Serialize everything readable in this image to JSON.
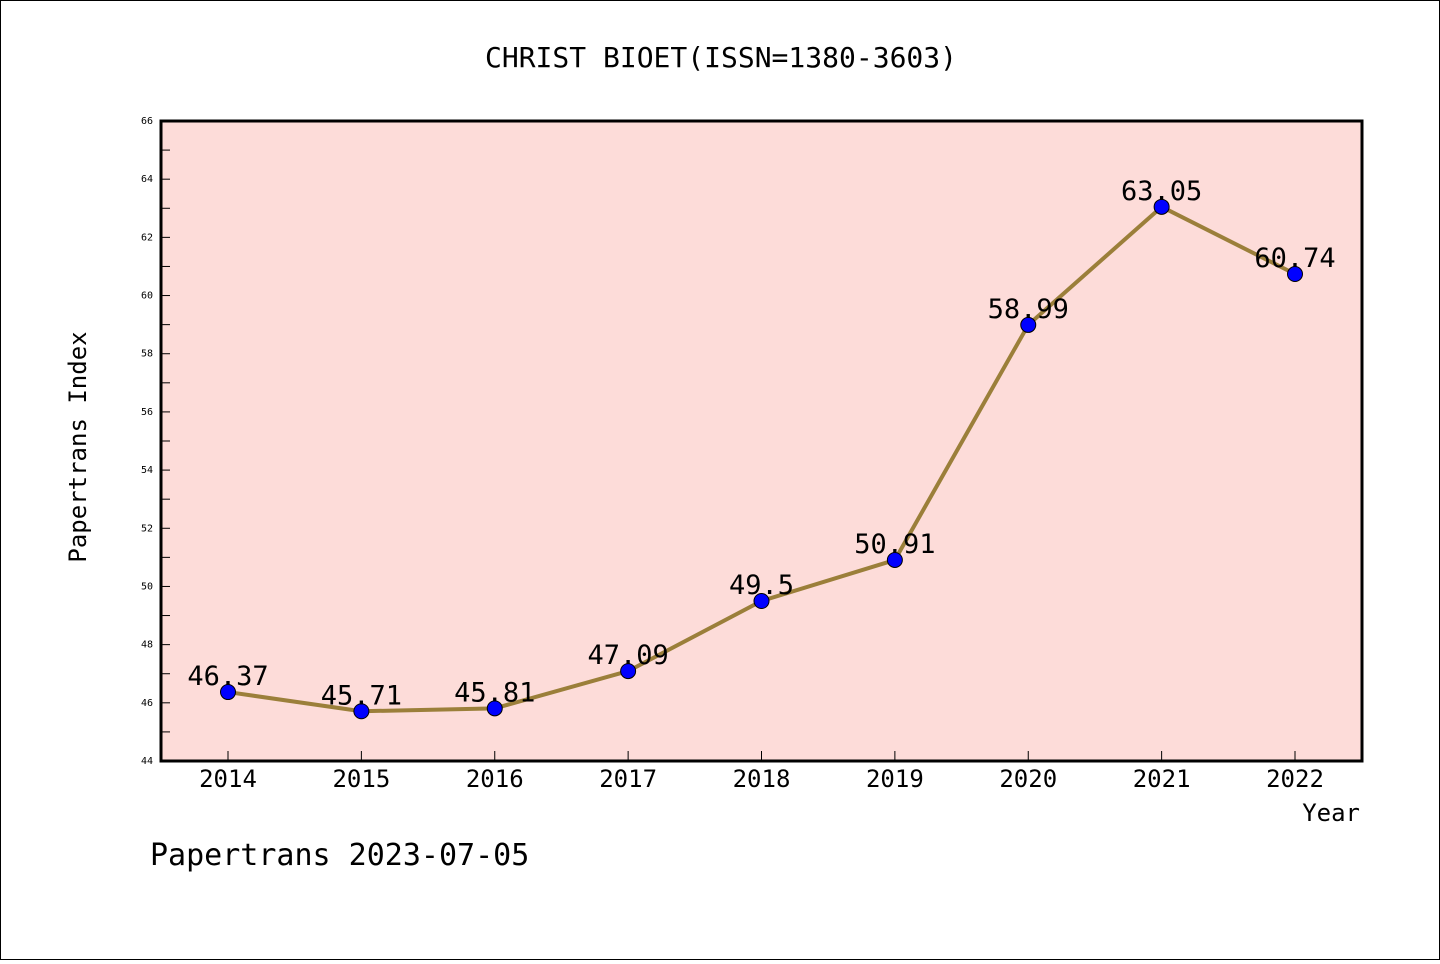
{
  "chart_data": {
    "type": "line",
    "title": "CHRIST BIOET(ISSN=1380-3603)",
    "xlabel": "Year",
    "ylabel": "Papertrans Index",
    "x": [
      2014,
      2015,
      2016,
      2017,
      2018,
      2019,
      2020,
      2021,
      2022
    ],
    "x_tick_labels": [
      "2014",
      "2015",
      "2016",
      "2017",
      "2018",
      "2019",
      "2020",
      "2021",
      "2022"
    ],
    "series": [
      {
        "values": [
          46.37,
          45.71,
          45.81,
          47.09,
          49.5,
          50.91,
          58.99,
          63.05,
          60.74
        ],
        "data_labels": [
          "46.37",
          "45.71",
          "45.81",
          "47.09",
          "49.5",
          "50.91",
          "58.99",
          "63.05",
          "60.74"
        ],
        "line_color": "#9b7f3a",
        "marker_color": "#0000ff"
      }
    ],
    "ylim": [
      44,
      66
    ],
    "y_ticks": [
      44,
      46,
      48,
      50,
      52,
      54,
      56,
      58,
      60,
      62,
      64,
      66
    ],
    "y_tick_labels": [
      "44",
      "46",
      "48",
      "50",
      "52",
      "54",
      "56",
      "58",
      "60",
      "62",
      "64",
      "66"
    ],
    "plot_background": "#fddcd9",
    "grid": false,
    "legend": "none"
  },
  "footer": {
    "watermark": "Papertrans 2023-07-05"
  }
}
